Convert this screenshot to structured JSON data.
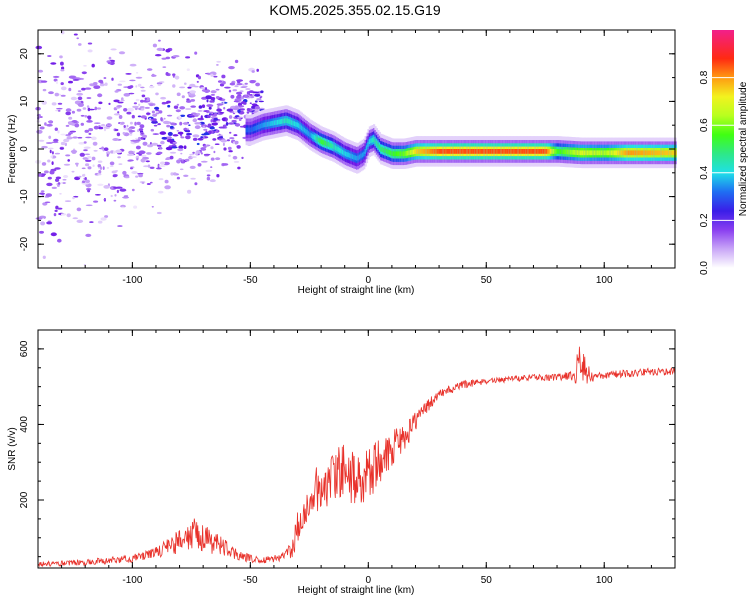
{
  "figure_title": "KOM5.2025.355.02.15.G19",
  "colors": {
    "snr_line": "#e8312a",
    "axes": "#000000",
    "cmap": [
      "#ffffff",
      "#c9a6f7",
      "#a061f2",
      "#6a12e6",
      "#1f2ee8",
      "#1f86f2",
      "#1fe3e3",
      "#2ee887",
      "#40ff12",
      "#a8ff1f",
      "#f2f21f",
      "#ff9a12",
      "#ff2a12",
      "#f21f8a"
    ]
  },
  "chart_data": [
    {
      "type": "heatmap",
      "title": "",
      "xlabel": "Height of straight line (km)",
      "ylabel": "Frequency (Hz)",
      "xlim": [
        -140,
        130
      ],
      "ylim": [
        -25,
        25
      ],
      "xticks": [
        -100,
        -50,
        0,
        50,
        100
      ],
      "yticks": [
        -20,
        -10,
        0,
        10,
        20
      ],
      "colorbar": {
        "label": "Normalized spectral amplitude",
        "range": [
          0,
          1
        ],
        "ticks": [
          0.0,
          0.2,
          0.4,
          0.6,
          0.8
        ]
      },
      "ridge": {
        "x": [
          -50,
          -45,
          -40,
          -35,
          -30,
          -25,
          -20,
          -15,
          -10,
          -5,
          -2,
          0,
          2,
          5,
          10,
          15,
          20,
          30,
          50,
          75,
          80,
          90,
          100,
          110,
          130
        ],
        "freq": [
          4,
          5,
          5.5,
          6,
          5,
          3,
          1.5,
          0.5,
          -1,
          -2,
          -1,
          1.5,
          2,
          0,
          -1,
          -1,
          -0.5,
          -0.5,
          -0.5,
          -0.5,
          -0.5,
          -0.8,
          -0.8,
          -0.8,
          -0.8
        ],
        "amp": [
          0.35,
          0.4,
          0.45,
          0.5,
          0.45,
          0.4,
          0.6,
          0.5,
          0.45,
          0.4,
          0.4,
          0.45,
          0.5,
          0.55,
          0.6,
          0.65,
          0.8,
          0.9,
          0.9,
          0.9,
          0.6,
          0.75,
          0.7,
          0.85,
          0.8
        ]
      },
      "scatter_region": {
        "x_range": [
          -140,
          -45
        ],
        "center_freq_start": 0,
        "center_freq_end": 8,
        "amplitude_range": [
          0.02,
          0.22
        ]
      }
    },
    {
      "type": "line",
      "title": "",
      "xlabel": "Height of straight line (km)",
      "ylabel": "SNR (v/v)",
      "xlim": [
        -140,
        130
      ],
      "ylim": [
        20,
        650
      ],
      "xticks": [
        -100,
        -50,
        0,
        50,
        100
      ],
      "yticks": [
        200,
        400,
        600
      ],
      "series": [
        {
          "name": "SNR",
          "x": [
            -140,
            -120,
            -100,
            -90,
            -80,
            -75,
            -70,
            -65,
            -60,
            -55,
            -50,
            -45,
            -40,
            -35,
            -32,
            -30,
            -25,
            -20,
            -15,
            -10,
            -5,
            0,
            5,
            10,
            15,
            20,
            25,
            30,
            40,
            50,
            60,
            70,
            80,
            85,
            88,
            90,
            92,
            95,
            100,
            110,
            120,
            130
          ],
          "y": [
            30,
            35,
            45,
            60,
            90,
            110,
            100,
            85,
            70,
            55,
            45,
            40,
            45,
            55,
            70,
            130,
            200,
            240,
            260,
            280,
            250,
            270,
            300,
            340,
            360,
            410,
            450,
            480,
            505,
            515,
            520,
            525,
            525,
            530,
            540,
            580,
            540,
            525,
            530,
            535,
            540,
            540
          ],
          "noise_amplitude": [
            6,
            8,
            10,
            15,
            35,
            45,
            40,
            30,
            22,
            15,
            10,
            8,
            10,
            15,
            25,
            45,
            60,
            70,
            70,
            75,
            75,
            75,
            60,
            50,
            35,
            25,
            18,
            12,
            10,
            8,
            8,
            8,
            10,
            12,
            40,
            60,
            40,
            12,
            10,
            10,
            10,
            10
          ]
        }
      ]
    }
  ]
}
